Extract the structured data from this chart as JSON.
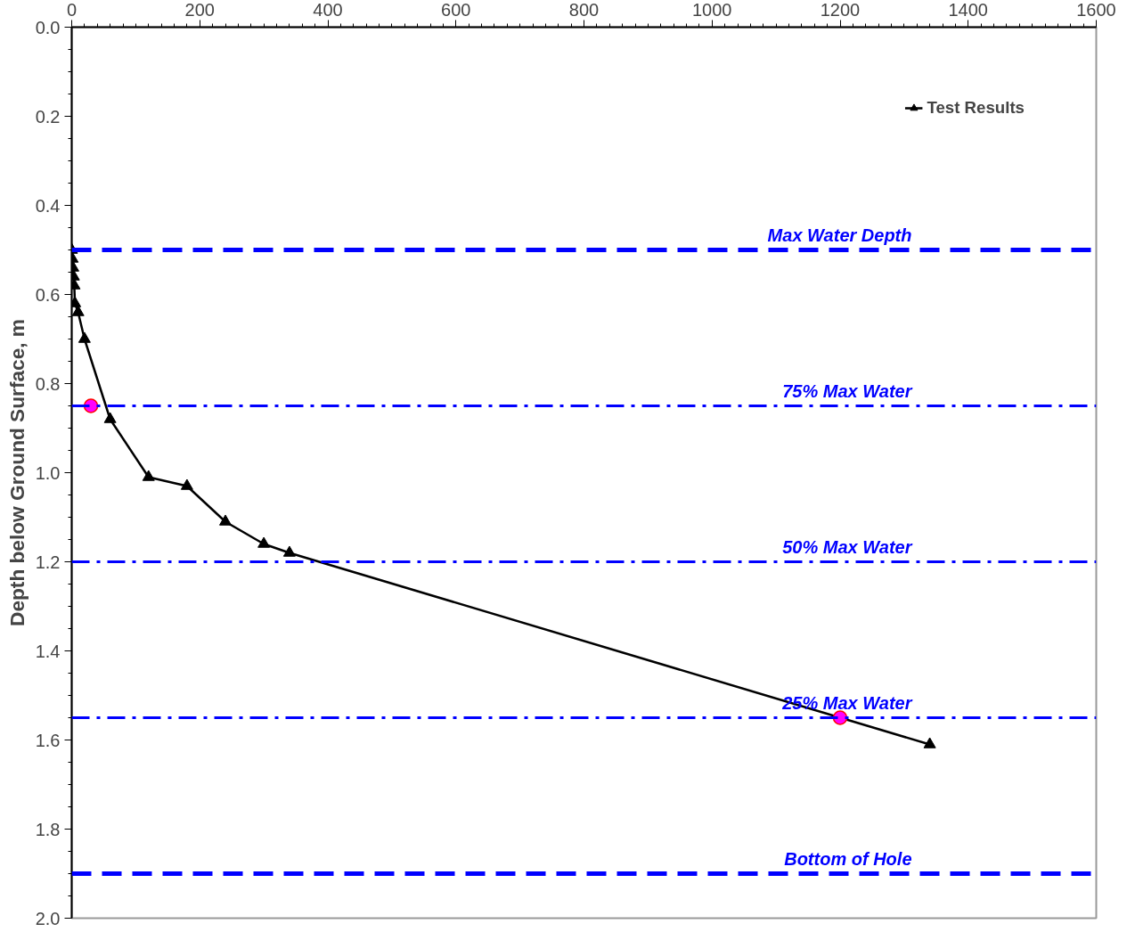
{
  "chart_data": {
    "type": "line",
    "ylabel": "Depth below Ground Surface, m",
    "series": [
      {
        "name": "Test Results",
        "color": "#000000",
        "marker": "triangle",
        "x": [
          0,
          1,
          2,
          3,
          4,
          5,
          10,
          20,
          60,
          120,
          180,
          240,
          300,
          340,
          1340
        ],
        "values": [
          0.5,
          0.52,
          0.54,
          0.56,
          0.58,
          0.62,
          0.64,
          0.7,
          0.88,
          1.01,
          1.03,
          1.11,
          1.16,
          1.18,
          1.61
        ]
      },
      {
        "type": "scatter",
        "color": "#ff00ff",
        "marker": "circle",
        "x": [
          30,
          1200
        ],
        "values": [
          0.85,
          1.55
        ]
      }
    ],
    "xlim": [
      0,
      1600
    ],
    "xticks": [
      0,
      200,
      400,
      600,
      800,
      1000,
      1200,
      1400,
      1600
    ],
    "ylim": [
      2.0,
      0.0
    ],
    "yticks": [
      {
        "value": 0,
        "label": "0.0"
      },
      0.2,
      0.4,
      0.6,
      0.8,
      {
        "value": 1,
        "label": "1.0"
      },
      1.2,
      1.4,
      1.6,
      1.8,
      {
        "value": 2,
        "label": "2.0"
      }
    ],
    "ref_lines": [
      {
        "axis": "y",
        "value": 0.5,
        "label": "Max Water Depth",
        "color": "#0000ff",
        "line_style": "dashed"
      },
      {
        "axis": "y",
        "value": 0.85,
        "label": "75% Max Water",
        "color": "#0000ff",
        "line_style": "dashdot"
      },
      {
        "axis": "y",
        "value": 1.2,
        "label": "50% Max Water",
        "color": "#0000ff",
        "line_style": "dashdot"
      },
      {
        "axis": "y",
        "value": 1.55,
        "label": "25% Max Water",
        "color": "#0000ff",
        "line_style": "dashdot"
      },
      {
        "axis": "y",
        "value": 1.9,
        "label": "Bottom of Hole",
        "color": "#0000ff",
        "line_style": "dashed"
      }
    ],
    "grid": false,
    "legend": "top right"
  }
}
